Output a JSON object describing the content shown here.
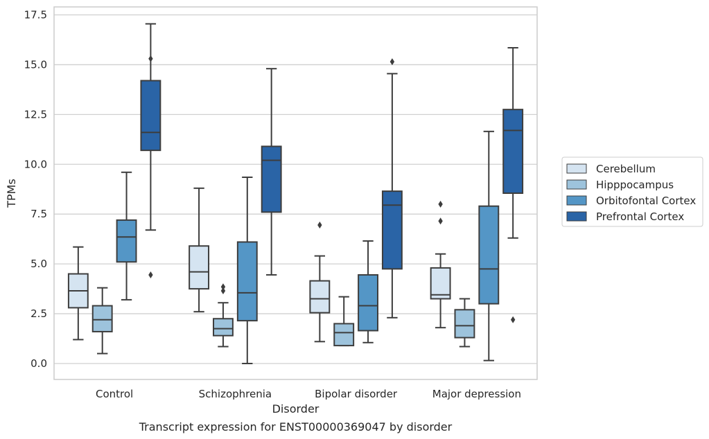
{
  "chart_data": {
    "type": "box",
    "title": "",
    "caption": "Transcript expression for ENST00000369047 by disorder",
    "xlabel": "Disorder",
    "ylabel": "TPMs",
    "ylim": [
      -0.8,
      17.9
    ],
    "yticks": [
      "0.0",
      "2.5",
      "5.0",
      "7.5",
      "10.0",
      "12.5",
      "15.0",
      "17.5"
    ],
    "grid": "horizontal",
    "legend_position": "right",
    "categories": [
      "Control",
      "Schizophrenia",
      "Bipolar disorder",
      "Major depression"
    ],
    "series": [
      {
        "name": "Cerebellum",
        "color": "#d5e4f1",
        "boxes": [
          {
            "whislo": 1.2,
            "q1": 2.8,
            "med": 3.65,
            "q3": 4.5,
            "whishi": 5.85,
            "fliers": []
          },
          {
            "whislo": 2.6,
            "q1": 3.75,
            "med": 4.6,
            "q3": 5.9,
            "whishi": 8.8,
            "fliers": []
          },
          {
            "whislo": 1.1,
            "q1": 2.55,
            "med": 3.25,
            "q3": 4.15,
            "whishi": 5.4,
            "fliers": [
              6.95
            ]
          },
          {
            "whislo": 1.8,
            "q1": 3.25,
            "med": 3.45,
            "q3": 4.8,
            "whishi": 5.5,
            "fliers": [
              7.15,
              8.0
            ]
          }
        ]
      },
      {
        "name": "Hipppocampus",
        "color": "#9dc3dc",
        "boxes": [
          {
            "whislo": 0.5,
            "q1": 1.6,
            "med": 2.2,
            "q3": 2.9,
            "whishi": 3.8,
            "fliers": []
          },
          {
            "whislo": 0.85,
            "q1": 1.4,
            "med": 1.75,
            "q3": 2.25,
            "whishi": 3.05,
            "fliers": [
              3.65,
              3.85
            ]
          },
          {
            "whislo": 0.9,
            "q1": 0.9,
            "med": 1.55,
            "q3": 2.0,
            "whishi": 3.35,
            "fliers": []
          },
          {
            "whislo": 0.85,
            "q1": 1.3,
            "med": 1.9,
            "q3": 2.7,
            "whishi": 3.25,
            "fliers": []
          }
        ]
      },
      {
        "name": "Orbitofontal Cortex",
        "color": "#5496c6",
        "boxes": [
          {
            "whislo": 3.2,
            "q1": 5.1,
            "med": 6.35,
            "q3": 7.2,
            "whishi": 9.6,
            "fliers": []
          },
          {
            "whislo": 0.0,
            "q1": 2.15,
            "med": 3.55,
            "q3": 6.1,
            "whishi": 9.35,
            "fliers": []
          },
          {
            "whislo": 1.05,
            "q1": 1.65,
            "med": 2.9,
            "q3": 4.45,
            "whishi": 6.15,
            "fliers": []
          },
          {
            "whislo": 0.15,
            "q1": 3.0,
            "med": 4.75,
            "q3": 7.9,
            "whishi": 11.65,
            "fliers": []
          }
        ]
      },
      {
        "name": "Prefrontal Cortex",
        "color": "#2a64a6",
        "boxes": [
          {
            "whislo": 6.7,
            "q1": 10.7,
            "med": 11.6,
            "q3": 14.2,
            "whishi": 17.05,
            "fliers": [
              4.45,
              15.3
            ]
          },
          {
            "whislo": 4.45,
            "q1": 7.6,
            "med": 10.2,
            "q3": 10.9,
            "whishi": 14.8,
            "fliers": []
          },
          {
            "whislo": 2.3,
            "q1": 4.75,
            "med": 7.95,
            "q3": 8.65,
            "whishi": 14.55,
            "fliers": [
              15.15
            ]
          },
          {
            "whislo": 6.3,
            "q1": 8.55,
            "med": 11.7,
            "q3": 12.75,
            "whishi": 15.85,
            "fliers": [
              2.2
            ]
          }
        ]
      }
    ]
  }
}
